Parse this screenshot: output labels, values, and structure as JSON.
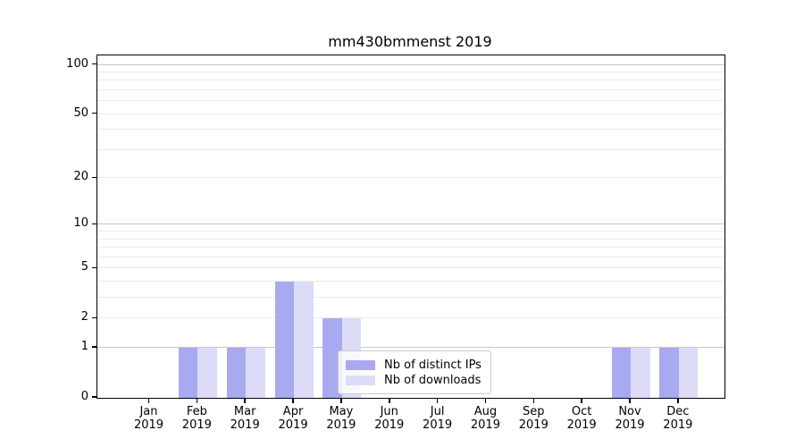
{
  "chart_data": {
    "type": "bar",
    "title": "mm430bmmenst 2019",
    "x_tick_labels": [
      [
        "Jan",
        "2019"
      ],
      [
        "Feb",
        "2019"
      ],
      [
        "Mar",
        "2019"
      ],
      [
        "Apr",
        "2019"
      ],
      [
        "May",
        "2019"
      ],
      [
        "Jun",
        "2019"
      ],
      [
        "Jul",
        "2019"
      ],
      [
        "Aug",
        "2019"
      ],
      [
        "Sep",
        "2019"
      ],
      [
        "Oct",
        "2019"
      ],
      [
        "Nov",
        "2019"
      ],
      [
        "Dec",
        "2019"
      ]
    ],
    "series": [
      {
        "name": "Nb of distinct IPs",
        "color": "#a9a9f2",
        "values": [
          0,
          1,
          1,
          4,
          2,
          0,
          0,
          0,
          0,
          0,
          1,
          1
        ]
      },
      {
        "name": "Nb of downloads",
        "color": "#dcdcf8",
        "values": [
          0,
          1,
          1,
          4,
          2,
          0,
          0,
          0,
          0,
          0,
          1,
          1
        ]
      }
    ],
    "y_scale": "log1p",
    "y_axis": {
      "labeled_ticks": [
        0,
        1,
        2,
        5,
        10,
        20,
        50,
        100
      ],
      "minor_gridlines": [
        2,
        3,
        4,
        5,
        6,
        7,
        8,
        9,
        20,
        30,
        40,
        50,
        60,
        70,
        80,
        90
      ],
      "major_gridlines": [
        1,
        10,
        100
      ],
      "ylim": [
        0,
        114
      ]
    },
    "grid": true,
    "legend_position": "lower center"
  },
  "colors": {
    "background": "#ffffff",
    "spine": "#000000",
    "text": "#000000",
    "grid_major": "#c6c6c6",
    "grid_minor": "#ebebeb",
    "legend_bg": "rgba(255,255,255,0.8)",
    "legend_border": "#cccccc"
  }
}
